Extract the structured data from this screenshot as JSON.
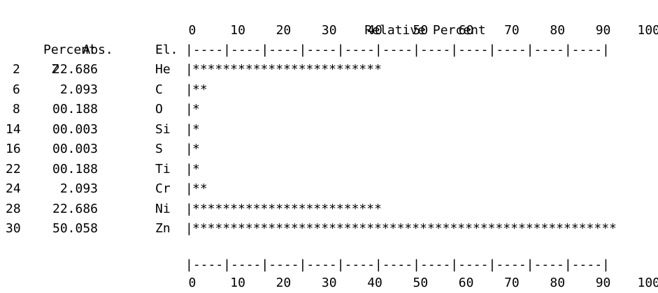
{
  "chart_data": {
    "type": "bar",
    "title": "Relative Percent",
    "header": {
      "z_label": "Z",
      "abs_label_top": "Abs.",
      "abs_label_bottom": "Percent",
      "element_label": "El."
    },
    "axis": {
      "ticks": [
        "0",
        "10",
        "20",
        "30",
        "40",
        "50",
        "60",
        "70",
        "80",
        "90",
        "100"
      ],
      "ruler": "|----|----|----|----|----|----|----|----|----|----|----|",
      "xlim": [
        0,
        100
      ]
    },
    "bar_glyph": "*",
    "rows": [
      {
        "z": "2",
        "abs": "22.686",
        "el": "He",
        "value": 45.3
      },
      {
        "z": "6",
        "abs": " 2.093",
        "el": "C",
        "value": 4.2
      },
      {
        "z": "8",
        "abs": "00.188",
        "el": "O",
        "value": 0.4
      },
      {
        "z": "14",
        "abs": "00.003",
        "el": "Si",
        "value": 0.01
      },
      {
        "z": "16",
        "abs": "00.003",
        "el": "S",
        "value": 0.01
      },
      {
        "z": "22",
        "abs": "00.188",
        "el": "Ti",
        "value": 0.4
      },
      {
        "z": "24",
        "abs": " 2.093",
        "el": "Cr",
        "value": 4.2
      },
      {
        "z": "28",
        "abs": "22.686",
        "el": "Ni",
        "value": 45.3
      },
      {
        "z": "30",
        "abs": "50.058",
        "el": "Zn",
        "value": 100
      }
    ]
  }
}
